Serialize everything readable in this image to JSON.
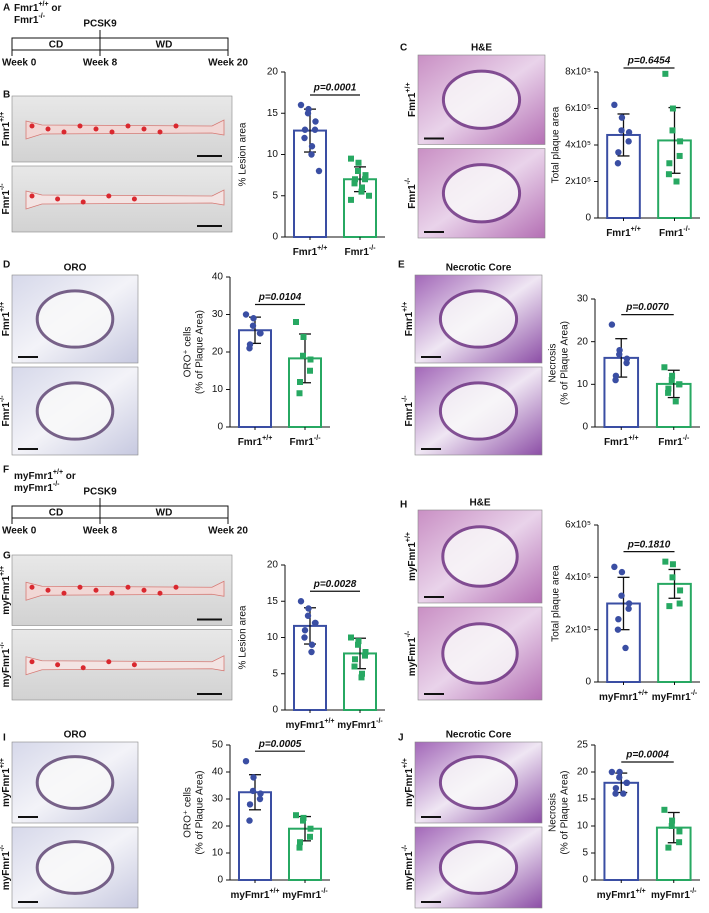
{
  "panel_labels": [
    "A",
    "B",
    "C",
    "D",
    "E",
    "F",
    "G",
    "H",
    "I",
    "J"
  ],
  "timelines": [
    {
      "genotype": [
        "Fmr1+/+ or",
        "Fmr1-/-"
      ],
      "treatment": "PCSK9",
      "phases": [
        "CD",
        "WD"
      ],
      "weeks": [
        "Week 0",
        "Week 8",
        "Week 20"
      ]
    },
    {
      "genotype": [
        "myFmr1+/+ or",
        "myFmr1-/-"
      ],
      "treatment": "PCSK9",
      "phases": [
        "CD",
        "WD"
      ],
      "weeks": [
        "Week 0",
        "Week 8",
        "Week 20"
      ]
    }
  ],
  "images": [
    {
      "rows": [
        "Fmr1+/+",
        "Fmr1-/-"
      ]
    },
    {
      "title": "H&E",
      "rows": [
        "Fmr1+/+",
        "Fmr1-/-"
      ]
    },
    {
      "title": "ORO",
      "rows": [
        "Fmr1+/+",
        "Fmr1-/-"
      ]
    },
    {
      "title": "Necrotic Core",
      "rows": [
        "Fmr1+/+",
        "Fmr1-/-"
      ]
    },
    {
      "rows": [
        "myFmr1+/+",
        "myFmr1-/-"
      ]
    },
    {
      "title": "H&E",
      "rows": [
        "myFmr1+/+",
        "myFmr1-/-"
      ]
    },
    {
      "title": "ORO",
      "rows": [
        "myFmr1+/+",
        "myFmr1-/-"
      ]
    },
    {
      "title": "Necrotic Core",
      "rows": [
        "myFmr1+/+",
        "myFmr1-/-"
      ]
    }
  ],
  "chart_data": [
    {
      "type": "bar",
      "ylabel": [
        "% Lesion area"
      ],
      "annotation": "p=0.0001",
      "categories": [
        "Fmr1+/+",
        "Fmr1-/-"
      ],
      "colors": [
        "#3a4ea3",
        "#27a862"
      ],
      "markers": [
        "circle",
        "square"
      ],
      "values": [
        12.9,
        7.0
      ],
      "errors": [
        2.6,
        1.5
      ],
      "points": [
        [
          16,
          15.5,
          15,
          14,
          13,
          13,
          12,
          11,
          10,
          8
        ],
        [
          9.5,
          9,
          8,
          7.5,
          7,
          7,
          6.5,
          6,
          5.5,
          5,
          4.5
        ]
      ],
      "ylim": [
        0,
        20
      ],
      "yticks": [
        0,
        5,
        10,
        15,
        20
      ]
    },
    {
      "type": "bar",
      "ylabel": [
        "Total plaque area"
      ],
      "annotation": "p=0.6454",
      "categories": [
        "Fmr1+/+",
        "Fmr1-/-"
      ],
      "colors": [
        "#3a4ea3",
        "#27a862"
      ],
      "markers": [
        "circle",
        "square"
      ],
      "values": [
        455000,
        425000
      ],
      "errors": [
        115000,
        180000
      ],
      "points": [
        [
          620000,
          550000,
          480000,
          470000,
          420000,
          360000,
          300000
        ],
        [
          790000,
          600000,
          480000,
          420000,
          340000,
          300000,
          240000,
          200000
        ]
      ],
      "ylim": [
        0,
        800000
      ],
      "yticks": [
        0,
        {
          "value": 200000,
          "label": "2x10⁵"
        },
        {
          "value": 400000,
          "label": "4x10⁵"
        },
        {
          "value": 600000,
          "label": "6x10⁵"
        },
        {
          "value": 800000,
          "label": "8x10⁵"
        }
      ]
    },
    {
      "type": "bar",
      "ylabel": [
        "ORO⁺ cells",
        "(% of Plaque Area)"
      ],
      "annotation": "p=0.0104",
      "categories": [
        "Fmr1+/+",
        "Fmr1-/-"
      ],
      "colors": [
        "#3a4ea3",
        "#27a862"
      ],
      "markers": [
        "circle",
        "square"
      ],
      "values": [
        25.8,
        18.3
      ],
      "errors": [
        3.5,
        6.5
      ],
      "points": [
        [
          30,
          29,
          27,
          25,
          25,
          22,
          21
        ],
        [
          28,
          24,
          19,
          18,
          15,
          12,
          9
        ]
      ],
      "ylim": [
        0,
        40
      ],
      "yticks": [
        0,
        10,
        20,
        30,
        40
      ]
    },
    {
      "type": "bar",
      "ylabel": [
        "Necrosis",
        "(% of Plaque Area)"
      ],
      "annotation": "p=0.0070",
      "categories": [
        "Fmr1+/+",
        "Fmr1-/-"
      ],
      "colors": [
        "#3a4ea3",
        "#27a862"
      ],
      "markers": [
        "circle",
        "square"
      ],
      "values": [
        16.2,
        10.1
      ],
      "errors": [
        4.5,
        3.2
      ],
      "points": [
        [
          24,
          18,
          17,
          16,
          15,
          12,
          11
        ],
        [
          14,
          12,
          11,
          10,
          10,
          9,
          8,
          6
        ]
      ],
      "ylim": [
        0,
        30
      ],
      "yticks": [
        0,
        10,
        20,
        30
      ]
    },
    {
      "type": "bar",
      "ylabel": [
        "% Lesion area"
      ],
      "annotation": "p=0.0028",
      "categories": [
        "myFmr1+/+",
        "myFmr1-/-"
      ],
      "colors": [
        "#3a4ea3",
        "#27a862"
      ],
      "markers": [
        "circle",
        "square"
      ],
      "values": [
        11.6,
        7.8
      ],
      "errors": [
        2.5,
        2.1
      ],
      "points": [
        [
          15,
          14,
          13,
          12,
          12,
          11,
          10,
          9,
          8
        ],
        [
          10,
          9.5,
          9,
          8,
          7.5,
          7,
          6,
          5,
          4.5
        ]
      ],
      "ylim": [
        0,
        20
      ],
      "yticks": [
        0,
        5,
        10,
        15,
        20
      ]
    },
    {
      "type": "bar",
      "ylabel": [
        "Total plaque area"
      ],
      "annotation": "p=0.1810",
      "categories": [
        "myFmr1+/+",
        "myFmr1-/-"
      ],
      "colors": [
        "#3a4ea3",
        "#27a862"
      ],
      "markers": [
        "circle",
        "square"
      ],
      "values": [
        300000,
        375000
      ],
      "errors": [
        100000,
        55000
      ],
      "points": [
        [
          440000,
          420000,
          330000,
          300000,
          280000,
          240000,
          200000,
          130000
        ],
        [
          460000,
          450000,
          400000,
          350000,
          300000,
          290000
        ]
      ],
      "ylim": [
        0,
        600000
      ],
      "yticks": [
        0,
        {
          "value": 200000,
          "label": "2x10⁵"
        },
        {
          "value": 400000,
          "label": "4x10⁵"
        },
        {
          "value": 600000,
          "label": "6x10⁵"
        }
      ]
    },
    {
      "type": "bar",
      "ylabel": [
        "ORO⁺ cells",
        "(% of Plaque Area)"
      ],
      "annotation": "p=0.0005",
      "categories": [
        "myFmr1+/+",
        "myFmr1-/-"
      ],
      "colors": [
        "#3a4ea3",
        "#27a862"
      ],
      "markers": [
        "circle",
        "square"
      ],
      "values": [
        32.5,
        19.0
      ],
      "errors": [
        6.5,
        4.5
      ],
      "points": [
        [
          44,
          38,
          33,
          32,
          30,
          28,
          22
        ],
        [
          24,
          23,
          22,
          19,
          16,
          14,
          12
        ]
      ],
      "ylim": [
        0,
        50
      ],
      "yticks": [
        0,
        10,
        20,
        30,
        40,
        50
      ]
    },
    {
      "type": "bar",
      "ylabel": [
        "Necrosis",
        "(% of Plaque Area)"
      ],
      "annotation": "p=0.0004",
      "categories": [
        "myFmr1+/+",
        "myFmr1-/-"
      ],
      "colors": [
        "#3a4ea3",
        "#27a862"
      ],
      "markers": [
        "circle",
        "square"
      ],
      "values": [
        18.0,
        9.7
      ],
      "errors": [
        1.8,
        2.8
      ],
      "points": [
        [
          20,
          20,
          19,
          18,
          18,
          17,
          16,
          16
        ],
        [
          13,
          11,
          10,
          9,
          7,
          6
        ]
      ],
      "ylim": [
        0,
        25
      ],
      "yticks": [
        0,
        5,
        10,
        15,
        20,
        25
      ]
    }
  ]
}
